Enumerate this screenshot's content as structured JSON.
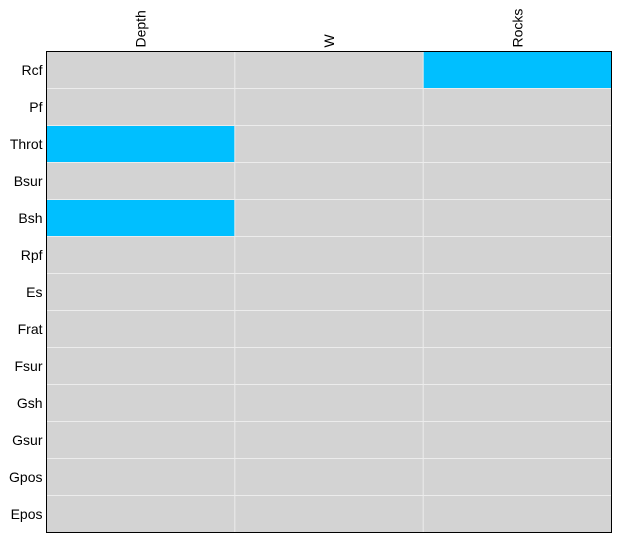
{
  "chart_data": {
    "type": "heatmap",
    "columns": [
      "Depth",
      "W",
      "Rocks"
    ],
    "rows": [
      "Rcf",
      "Pf",
      "Throt",
      "Bsur",
      "Bsh",
      "Rpf",
      "Es",
      "Frat",
      "Fsur",
      "Gsh",
      "Gsur",
      "Gpos",
      "Epos"
    ],
    "values": [
      [
        0,
        0,
        1
      ],
      [
        0,
        0,
        0
      ],
      [
        1,
        0,
        0
      ],
      [
        0,
        0,
        0
      ],
      [
        1,
        0,
        0
      ],
      [
        0,
        0,
        0
      ],
      [
        0,
        0,
        0
      ],
      [
        0,
        0,
        0
      ],
      [
        0,
        0,
        0
      ],
      [
        0,
        0,
        0
      ],
      [
        0,
        0,
        0
      ],
      [
        0,
        0,
        0
      ],
      [
        0,
        0,
        0
      ]
    ],
    "colors": {
      "off": "#d3d3d3",
      "on": "#00bfff",
      "grid": "#ececec",
      "border": "#000000"
    },
    "grid": true,
    "legend": "none"
  }
}
